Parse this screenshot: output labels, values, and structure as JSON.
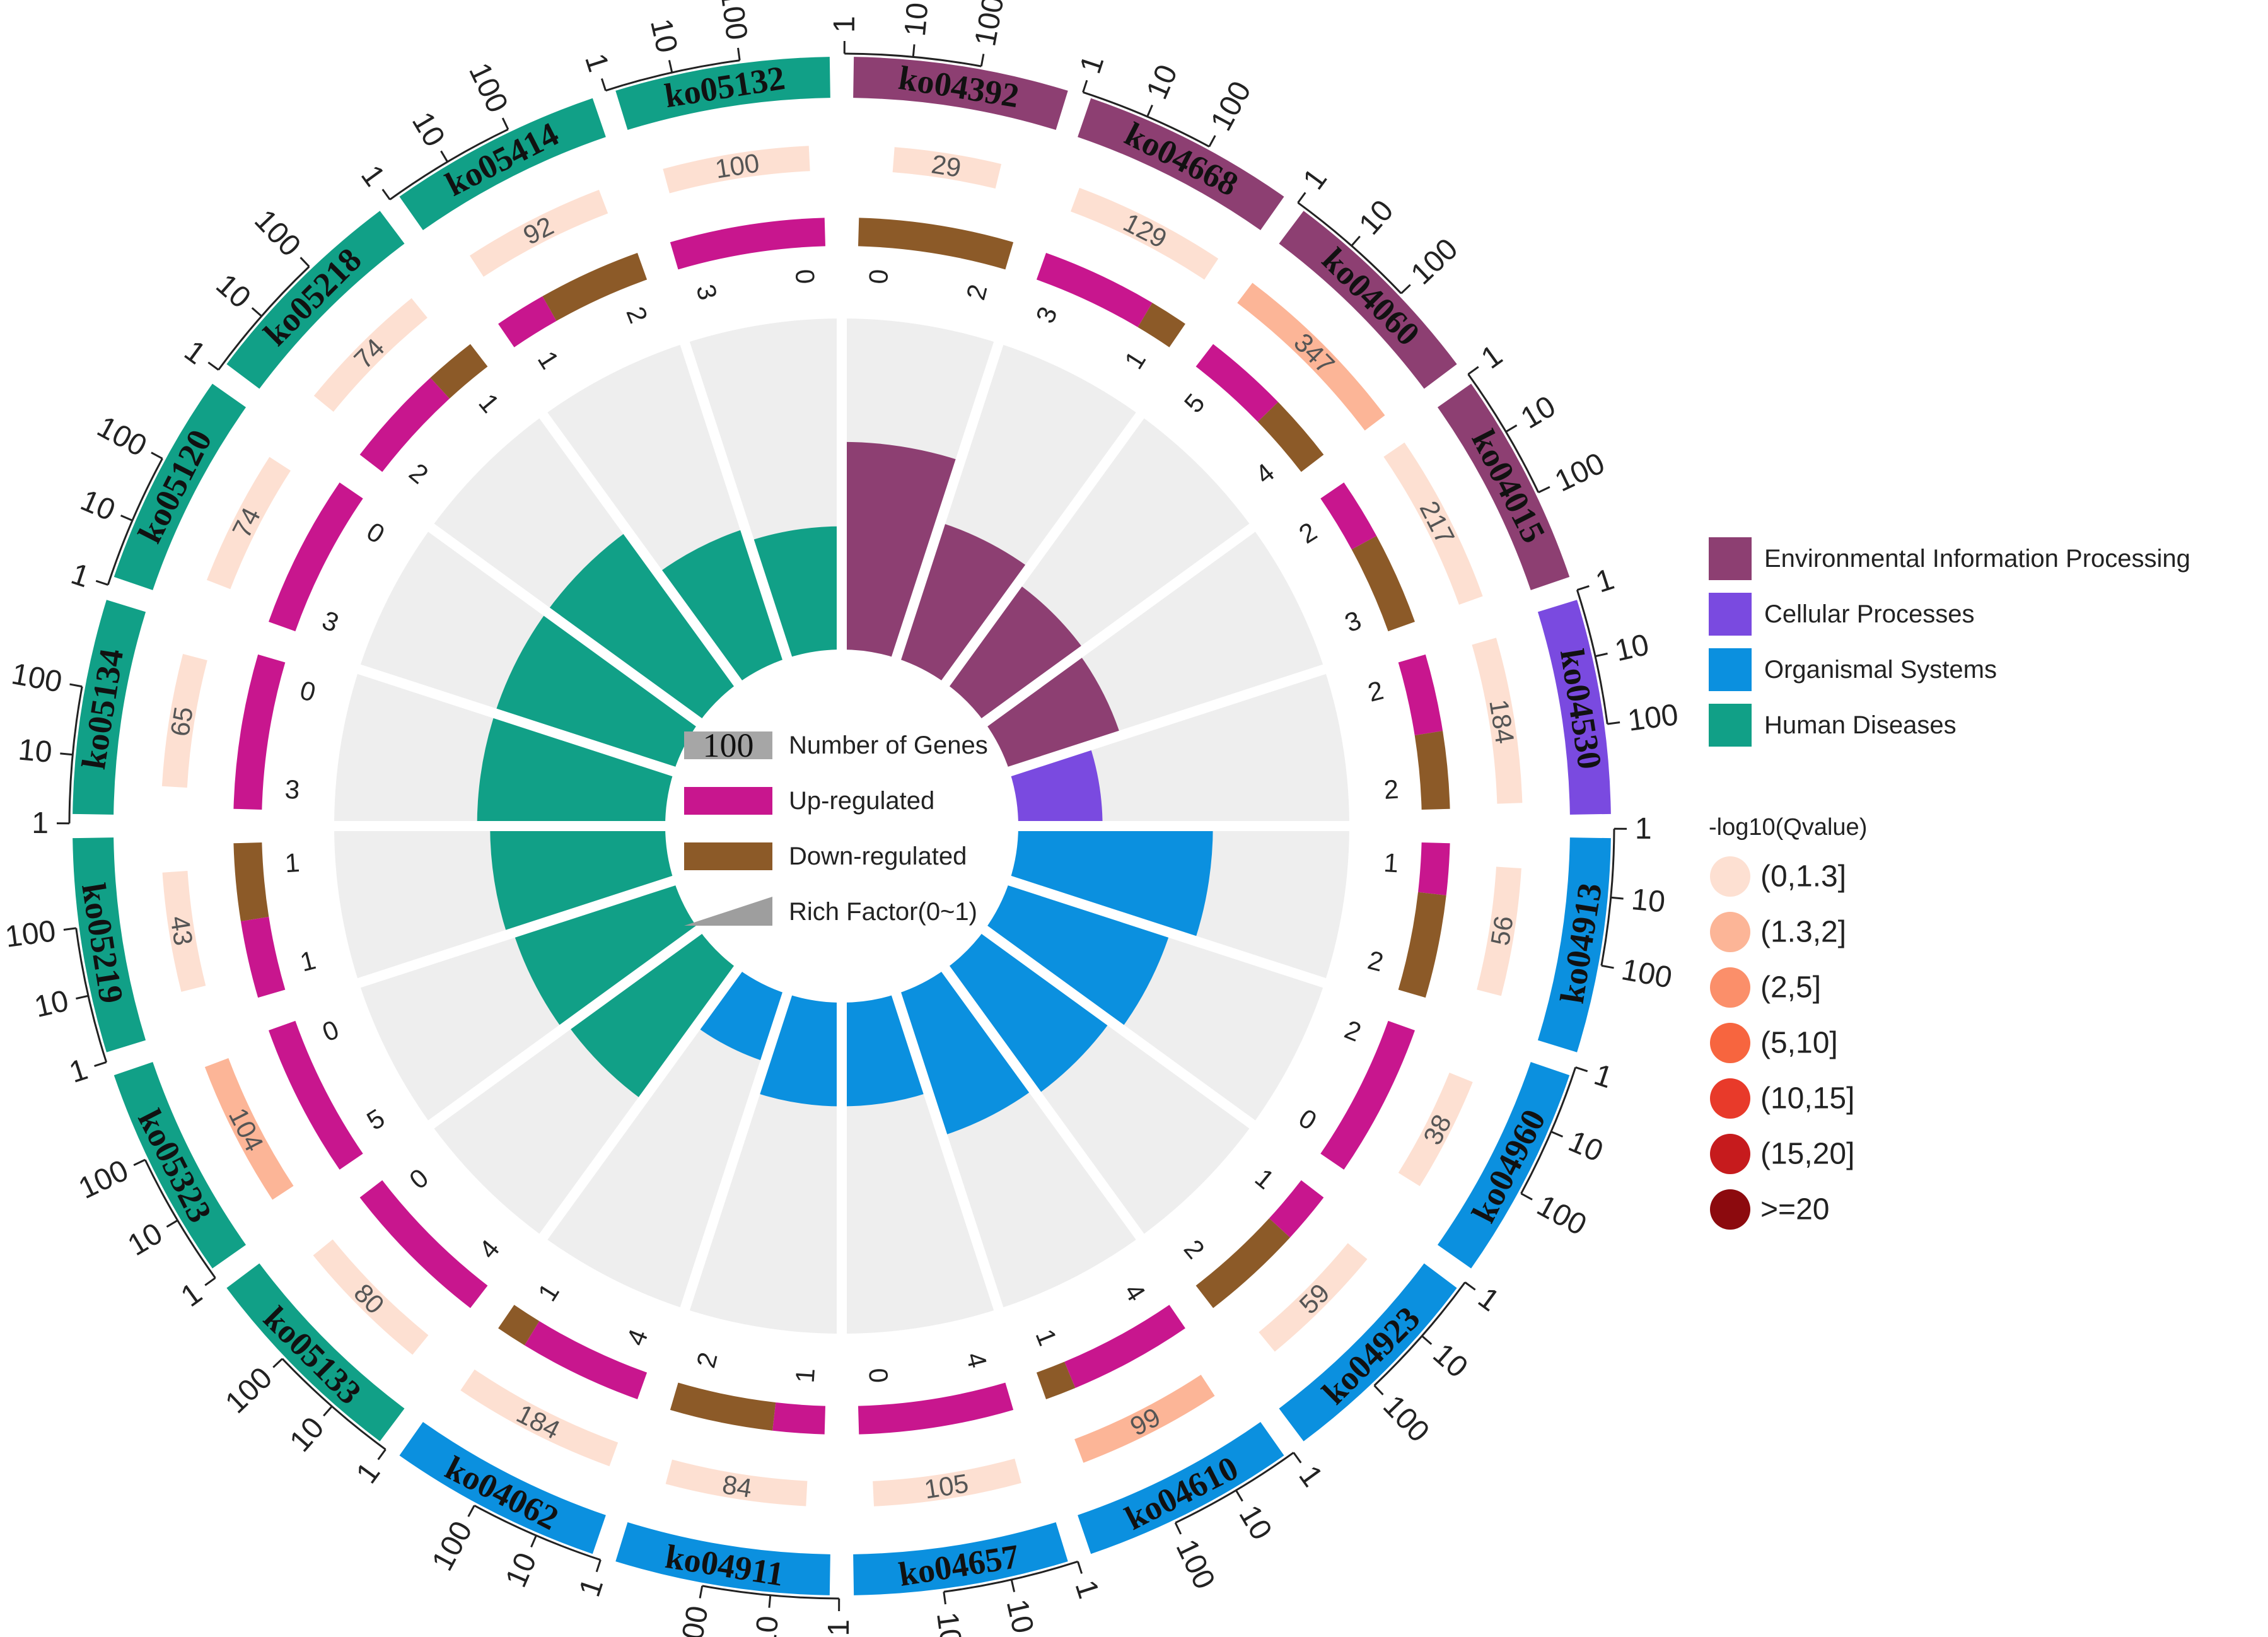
{
  "chart_data": {
    "type": "circos-go-enrichment",
    "title": "",
    "ko_axis_labels": [
      "1",
      "10",
      "100"
    ],
    "categories": [
      {
        "name": "Environmental Information Processing",
        "color": "#8d3f72"
      },
      {
        "name": "Cellular Processes",
        "color": "#7a4ae0"
      },
      {
        "name": "Organismal Systems",
        "color": "#0b90df"
      },
      {
        "name": "Human Diseases",
        "color": "#11a087"
      }
    ],
    "pathways": [
      {
        "id": "ko04392",
        "category": 0,
        "genes": "29",
        "q_bin": 0,
        "up": 0,
        "down": 2,
        "rich": 0.62
      },
      {
        "id": "ko04668",
        "category": 0,
        "genes": "129",
        "q_bin": 0,
        "up": 3,
        "down": 1,
        "rich": 0.42
      },
      {
        "id": "ko04060",
        "category": 0,
        "genes": "347",
        "q_bin": 1,
        "up": 5,
        "down": 4,
        "rich": 0.36
      },
      {
        "id": "ko04015",
        "category": 0,
        "genes": "217",
        "q_bin": 0,
        "up": 2,
        "down": 3,
        "rich": 0.34
      },
      {
        "id": "ko04530",
        "category": 1,
        "genes": "184",
        "q_bin": 0,
        "up": 2,
        "down": 2,
        "rich": 0.24
      },
      {
        "id": "ko04913",
        "category": 2,
        "genes": "56",
        "q_bin": 0,
        "up": 1,
        "down": 2,
        "rich": 0.58
      },
      {
        "id": "ko04960",
        "category": 2,
        "genes": "38",
        "q_bin": 0,
        "up": 2,
        "down": 0,
        "rich": 0.5
      },
      {
        "id": "ko04923",
        "category": 2,
        "genes": "59",
        "q_bin": 0,
        "up": 1,
        "down": 2,
        "rich": 0.46
      },
      {
        "id": "ko04610",
        "category": 2,
        "genes": "99",
        "q_bin": 1,
        "up": 4,
        "down": 1,
        "rich": 0.44
      },
      {
        "id": "ko04657",
        "category": 2,
        "genes": "105",
        "q_bin": 0,
        "up": 4,
        "down": 0,
        "rich": 0.3
      },
      {
        "id": "ko04911",
        "category": 2,
        "genes": "84",
        "q_bin": 0,
        "up": 1,
        "down": 2,
        "rich": 0.3
      },
      {
        "id": "ko04062",
        "category": 2,
        "genes": "184",
        "q_bin": 0,
        "up": 4,
        "down": 1,
        "rich": 0.2
      },
      {
        "id": "ko05133",
        "category": 3,
        "genes": "80",
        "q_bin": 0,
        "up": 4,
        "down": 0,
        "rich": 0.48
      },
      {
        "id": "ko05323",
        "category": 3,
        "genes": "104",
        "q_bin": 1,
        "up": 5,
        "down": 0,
        "rich": 0.5
      },
      {
        "id": "ko05219",
        "category": 3,
        "genes": "43",
        "q_bin": 0,
        "up": 1,
        "down": 1,
        "rich": 0.52
      },
      {
        "id": "ko05134",
        "category": 3,
        "genes": "65",
        "q_bin": 0,
        "up": 3,
        "down": 0,
        "rich": 0.56
      },
      {
        "id": "ko05120",
        "category": 3,
        "genes": "74",
        "q_bin": 0,
        "up": 3,
        "down": 0,
        "rich": 0.56
      },
      {
        "id": "ko05218",
        "category": 3,
        "genes": "74",
        "q_bin": 0,
        "up": 2,
        "down": 1,
        "rich": 0.56
      },
      {
        "id": "ko05414",
        "category": 3,
        "genes": "92",
        "q_bin": 0,
        "up": 1,
        "down": 2,
        "rich": 0.4
      },
      {
        "id": "ko05132",
        "category": 3,
        "genes": "100",
        "q_bin": 0,
        "up": 3,
        "down": 0,
        "rich": 0.36
      }
    ],
    "center_legend": [
      {
        "swatch": "number",
        "label": "Number of Genes",
        "sample": "100"
      },
      {
        "swatch": "up",
        "label": "Up-regulated"
      },
      {
        "swatch": "down",
        "label": "Down-regulated"
      },
      {
        "swatch": "rich",
        "label": "Rich Factor(0~1)"
      }
    ],
    "qvalue_legend": {
      "title": "-log10(Qvalue)",
      "bins": [
        {
          "label": "(0,1.3]",
          "color": "#fde0d2"
        },
        {
          "label": "(1.3,2]",
          "color": "#fcb597"
        },
        {
          "label": "(2,5]",
          "color": "#fb8f6a"
        },
        {
          "label": "(5,10]",
          "color": "#f7653f"
        },
        {
          "label": "(10,15]",
          "color": "#e83a2a"
        },
        {
          "label": "(15,20]",
          "color": "#c61b1d"
        },
        {
          "label": ">=20",
          "color": "#8c0a0e"
        }
      ]
    },
    "colors": {
      "up": "#c8168e",
      "down": "#8c5a28",
      "track_bg": "#eeeeee",
      "gene_bg": "#fde0d2",
      "number_swatch": "#a6a6a6",
      "rich_swatch": "#9e9e9e"
    }
  }
}
